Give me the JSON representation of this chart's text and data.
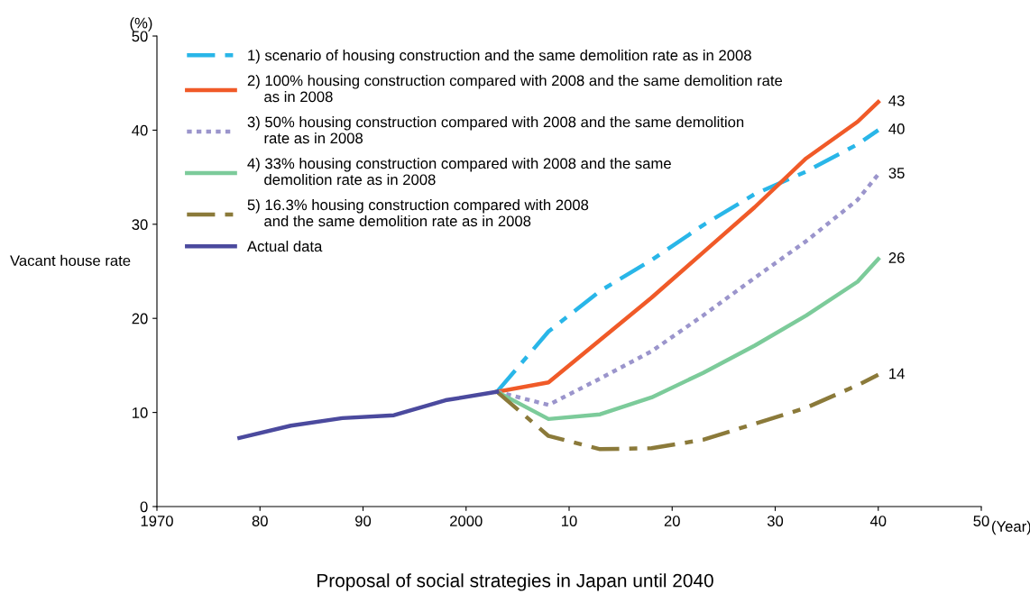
{
  "chart_data": {
    "type": "line",
    "title": "Proposal of social strategies in Japan until 2040",
    "ylabel": "Vacant house rate",
    "xlim": [
      1970,
      2050
    ],
    "ylim": [
      0,
      50
    ],
    "xticks": [
      1970,
      {
        "value": 1980,
        "label": "80"
      },
      {
        "value": 1990,
        "label": "90"
      },
      2000,
      {
        "value": 2010,
        "label": "10"
      },
      {
        "value": 2020,
        "label": "20"
      },
      {
        "value": 2030,
        "label": "30"
      },
      {
        "value": 2040,
        "label": "40"
      },
      {
        "value": 2050,
        "label": "50"
      }
    ],
    "yticks": [
      0,
      10,
      20,
      30,
      40,
      50
    ],
    "grid": false,
    "legend": "top left",
    "marker": "none",
    "series": [
      {
        "name": "1) scenario of housing construction and the same demolition rate as in 2008",
        "color": "#29b6e8",
        "line_style": "dashed",
        "x": [
          2003,
          2008,
          2013,
          2018,
          2023,
          2028,
          2033,
          2038,
          2040
        ],
        "values": [
          12.2,
          18.6,
          22.9,
          26.2,
          29.9,
          33.2,
          35.6,
          38.5,
          40.0
        ],
        "value_labels": [
          null,
          null,
          null,
          null,
          null,
          null,
          null,
          null,
          "40"
        ]
      },
      {
        "name": "2) 100% housing construction compared with 2008 and the same demolition rate\n    as in 2008",
        "color": "#f05a28",
        "line_style": "solid",
        "x": [
          2003,
          2008,
          2013,
          2018,
          2023,
          2028,
          2033,
          2038,
          2040
        ],
        "values": [
          12.2,
          13.2,
          17.7,
          22.2,
          27.0,
          31.8,
          37.0,
          40.9,
          43.0
        ],
        "value_labels": [
          null,
          null,
          null,
          null,
          null,
          null,
          null,
          null,
          "43"
        ]
      },
      {
        "name": "3) 50% housing construction compared with 2008 and the same demolition\n    rate as in 2008",
        "color": "#9b95cc",
        "line_style": "dotted",
        "x": [
          2003,
          2008,
          2013,
          2018,
          2023,
          2028,
          2033,
          2038,
          2040
        ],
        "values": [
          12.2,
          10.8,
          13.6,
          16.5,
          20.3,
          24.3,
          28.2,
          32.6,
          35.3
        ],
        "value_labels": [
          null,
          null,
          null,
          null,
          null,
          null,
          null,
          null,
          "35"
        ]
      },
      {
        "name": "4) 33% housing construction compared with 2008 and the same\n    demolition rate as in 2008",
        "color": "#7ccb9a",
        "line_style": "solid",
        "x": [
          2003,
          2008,
          2013,
          2018,
          2023,
          2028,
          2033,
          2038,
          2040
        ],
        "values": [
          12.2,
          9.3,
          9.8,
          11.6,
          14.2,
          17.1,
          20.3,
          23.9,
          26.3
        ],
        "value_labels": [
          null,
          null,
          null,
          null,
          null,
          null,
          null,
          null,
          "26"
        ]
      },
      {
        "name": "5) 16.3% housing construction compared with 2008\n    and the same demolition rate as in 2008",
        "color": "#8b7a3a",
        "line_style": "dashed",
        "x": [
          2003,
          2008,
          2013,
          2018,
          2023,
          2028,
          2033,
          2038,
          2040
        ],
        "values": [
          12.2,
          7.5,
          6.1,
          6.2,
          7.1,
          8.8,
          10.5,
          12.9,
          14.0
        ],
        "value_labels": [
          null,
          null,
          null,
          null,
          null,
          null,
          null,
          null,
          "14"
        ]
      },
      {
        "name": "Actual data",
        "color": "#4b4a9e",
        "line_style": "solid",
        "x": [
          1978,
          1983,
          1988,
          1993,
          1998,
          2003
        ],
        "values": [
          7.3,
          8.6,
          9.4,
          9.7,
          11.3,
          12.2
        ]
      }
    ],
    "annotations": [
      "(%)",
      "(Year)"
    ]
  }
}
